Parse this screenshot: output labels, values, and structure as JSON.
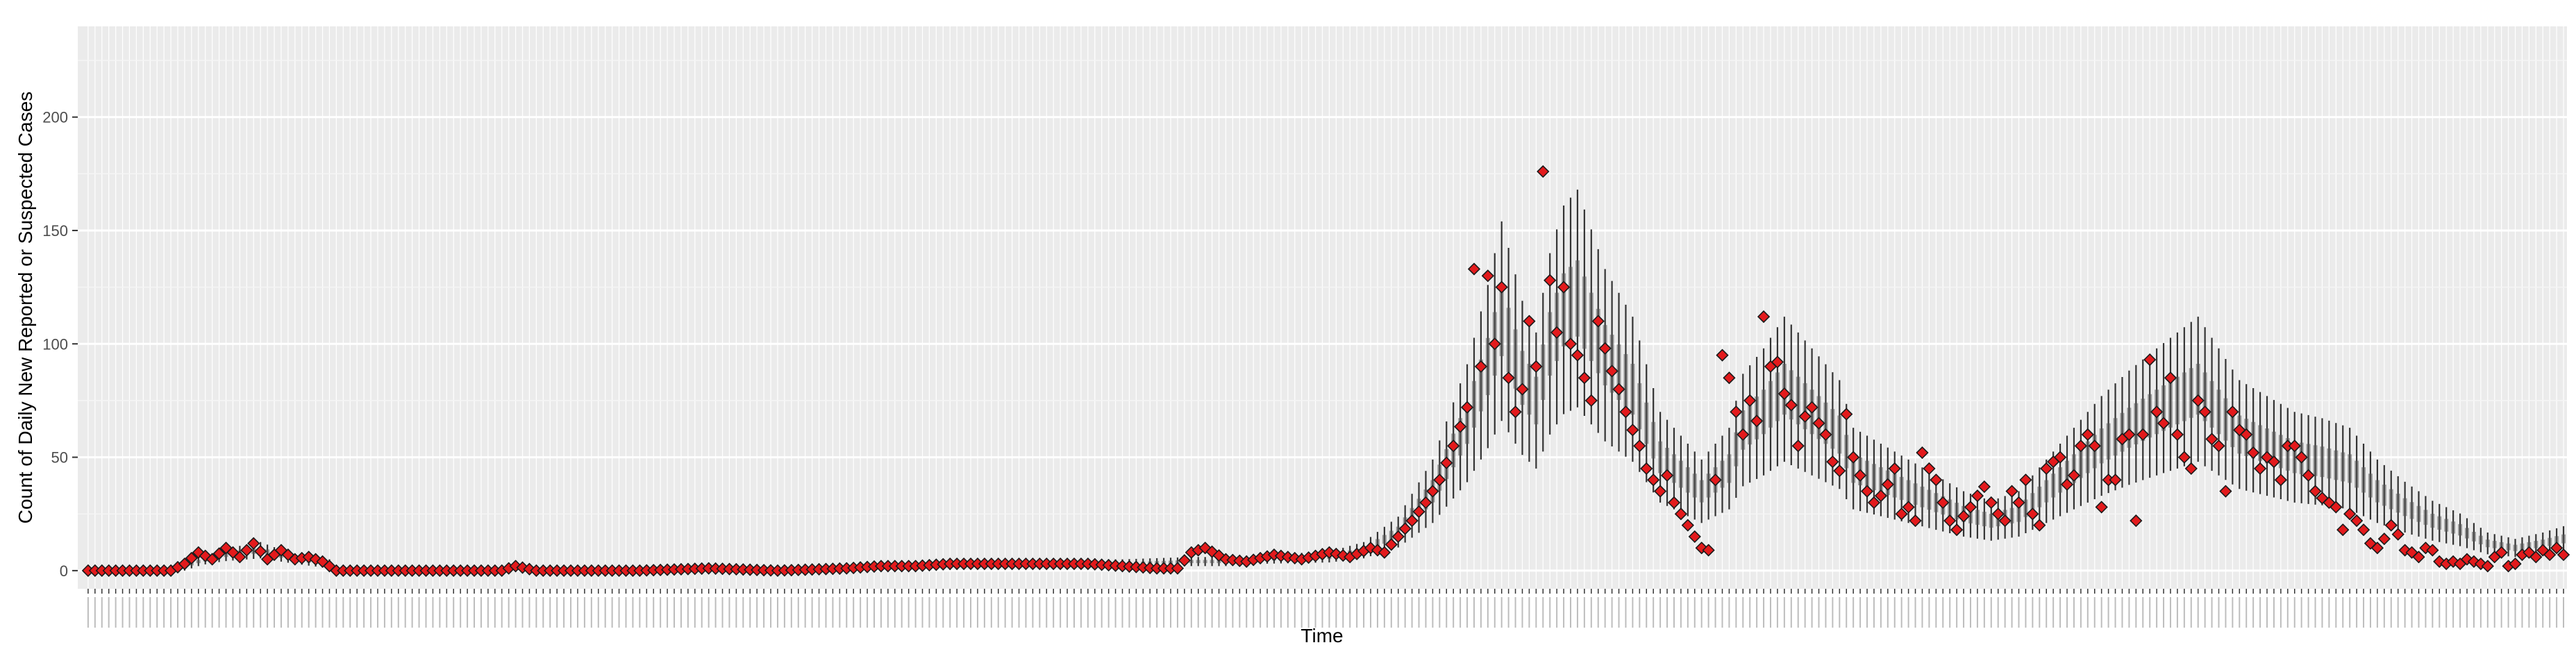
{
  "chart_data": {
    "type": "scatter",
    "title": "",
    "xlabel": "Time",
    "ylabel": "Count of Daily New Reported or Suspected Cases",
    "ylim": [
      -8,
      240
    ],
    "yticks": [
      0,
      50,
      100,
      150,
      200
    ],
    "x_tick_labels_legible": false,
    "grid": true,
    "legend": "none",
    "n_days": 360,
    "colors": {
      "panel": "#ebebeb",
      "grid_major": "#ffffff",
      "observed_fill": "#e31a1c",
      "observed_stroke": "#1a1a1a",
      "interval": "#333333"
    },
    "series": [
      {
        "kind": "interval",
        "description_points": [
          [
            0,
            0
          ],
          [
            12,
            0
          ],
          [
            16,
            4
          ],
          [
            20,
            7
          ],
          [
            25,
            9
          ],
          [
            30,
            5
          ],
          [
            35,
            3
          ],
          [
            36,
            0
          ],
          [
            60,
            0
          ],
          [
            100,
            0
          ],
          [
            110,
            1
          ],
          [
            120,
            2
          ],
          [
            135,
            3
          ],
          [
            145,
            3
          ],
          [
            150,
            3
          ],
          [
            160,
            4
          ],
          [
            165,
            4
          ],
          [
            170,
            5
          ],
          [
            180,
            6
          ],
          [
            185,
            9
          ],
          [
            190,
            17
          ],
          [
            195,
            35
          ],
          [
            200,
            65
          ],
          [
            203,
            90
          ],
          [
            205,
            110
          ],
          [
            208,
            85
          ],
          [
            210,
            75
          ],
          [
            212,
            100
          ],
          [
            214,
            115
          ],
          [
            216,
            120
          ],
          [
            220,
            95
          ],
          [
            224,
            80
          ],
          [
            228,
            50
          ],
          [
            232,
            40
          ],
          [
            234,
            35
          ],
          [
            238,
            45
          ],
          [
            240,
            62
          ],
          [
            243,
            70
          ],
          [
            246,
            80
          ],
          [
            250,
            70
          ],
          [
            254,
            60
          ],
          [
            256,
            45
          ],
          [
            260,
            40
          ],
          [
            264,
            35
          ],
          [
            268,
            30
          ],
          [
            272,
            25
          ],
          [
            276,
            22
          ],
          [
            280,
            25
          ],
          [
            284,
            35
          ],
          [
            288,
            45
          ],
          [
            292,
            55
          ],
          [
            296,
            63
          ],
          [
            300,
            70
          ],
          [
            303,
            75
          ],
          [
            306,
            80
          ],
          [
            309,
            70
          ],
          [
            312,
            60
          ],
          [
            316,
            55
          ],
          [
            320,
            50
          ],
          [
            324,
            48
          ],
          [
            328,
            45
          ],
          [
            332,
            35
          ],
          [
            336,
            28
          ],
          [
            340,
            22
          ],
          [
            344,
            18
          ],
          [
            348,
            12
          ],
          [
            352,
            10
          ],
          [
            356,
            12
          ],
          [
            359,
            14
          ]
        ],
        "band_halfwidth_fraction": 0.4
      },
      {
        "kind": "observed",
        "points": [
          [
            0,
            0
          ],
          [
            6,
            0
          ],
          [
            12,
            0
          ],
          [
            14,
            3
          ],
          [
            16,
            8
          ],
          [
            18,
            5
          ],
          [
            20,
            10
          ],
          [
            22,
            6
          ],
          [
            24,
            12
          ],
          [
            26,
            5
          ],
          [
            28,
            9
          ],
          [
            30,
            5
          ],
          [
            32,
            6
          ],
          [
            34,
            4
          ],
          [
            36,
            0
          ],
          [
            50,
            0
          ],
          [
            60,
            0
          ],
          [
            62,
            2
          ],
          [
            65,
            0
          ],
          [
            75,
            0
          ],
          [
            80,
            0
          ],
          [
            90,
            1
          ],
          [
            100,
            0
          ],
          [
            110,
            1
          ],
          [
            115,
            2
          ],
          [
            120,
            2
          ],
          [
            125,
            3
          ],
          [
            130,
            3
          ],
          [
            135,
            3
          ],
          [
            140,
            3
          ],
          [
            145,
            3
          ],
          [
            150,
            2
          ],
          [
            155,
            1
          ],
          [
            158,
            1
          ],
          [
            160,
            8
          ],
          [
            162,
            10
          ],
          [
            165,
            5
          ],
          [
            168,
            4
          ],
          [
            172,
            7
          ],
          [
            176,
            5
          ],
          [
            180,
            8
          ],
          [
            183,
            6
          ],
          [
            186,
            10
          ],
          [
            188,
            8
          ],
          [
            190,
            15
          ],
          [
            192,
            22
          ],
          [
            194,
            30
          ],
          [
            196,
            40
          ],
          [
            198,
            55
          ],
          [
            200,
            72
          ],
          [
            201,
            133
          ],
          [
            202,
            90
          ],
          [
            203,
            130
          ],
          [
            204,
            100
          ],
          [
            205,
            125
          ],
          [
            206,
            85
          ],
          [
            207,
            70
          ],
          [
            208,
            80
          ],
          [
            209,
            110
          ],
          [
            210,
            90
          ],
          [
            211,
            176
          ],
          [
            212,
            128
          ],
          [
            213,
            105
          ],
          [
            214,
            125
          ],
          [
            215,
            100
          ],
          [
            216,
            95
          ],
          [
            217,
            85
          ],
          [
            218,
            75
          ],
          [
            219,
            110
          ],
          [
            220,
            98
          ],
          [
            221,
            88
          ],
          [
            222,
            80
          ],
          [
            223,
            70
          ],
          [
            224,
            62
          ],
          [
            225,
            55
          ],
          [
            226,
            45
          ],
          [
            227,
            40
          ],
          [
            228,
            35
          ],
          [
            229,
            42
          ],
          [
            230,
            30
          ],
          [
            231,
            25
          ],
          [
            232,
            20
          ],
          [
            233,
            15
          ],
          [
            234,
            10
          ],
          [
            235,
            9
          ],
          [
            236,
            40
          ],
          [
            237,
            95
          ],
          [
            238,
            85
          ],
          [
            239,
            70
          ],
          [
            240,
            60
          ],
          [
            241,
            75
          ],
          [
            242,
            66
          ],
          [
            243,
            112
          ],
          [
            244,
            90
          ],
          [
            245,
            92
          ],
          [
            246,
            78
          ],
          [
            247,
            73
          ],
          [
            248,
            55
          ],
          [
            249,
            68
          ],
          [
            250,
            72
          ],
          [
            251,
            65
          ],
          [
            252,
            60
          ],
          [
            253,
            48
          ],
          [
            254,
            44
          ],
          [
            255,
            69
          ],
          [
            256,
            50
          ],
          [
            257,
            42
          ],
          [
            258,
            35
          ],
          [
            259,
            30
          ],
          [
            260,
            33
          ],
          [
            261,
            38
          ],
          [
            262,
            45
          ],
          [
            263,
            25
          ],
          [
            264,
            28
          ],
          [
            265,
            22
          ],
          [
            266,
            52
          ],
          [
            267,
            45
          ],
          [
            268,
            40
          ],
          [
            269,
            30
          ],
          [
            270,
            22
          ],
          [
            271,
            18
          ],
          [
            272,
            24
          ],
          [
            273,
            28
          ],
          [
            274,
            33
          ],
          [
            275,
            37
          ],
          [
            276,
            30
          ],
          [
            277,
            25
          ],
          [
            278,
            22
          ],
          [
            279,
            35
          ],
          [
            280,
            30
          ],
          [
            281,
            40
          ],
          [
            282,
            25
          ],
          [
            283,
            20
          ],
          [
            284,
            45
          ],
          [
            285,
            48
          ],
          [
            286,
            50
          ],
          [
            287,
            38
          ],
          [
            288,
            42
          ],
          [
            289,
            55
          ],
          [
            290,
            60
          ],
          [
            291,
            55
          ],
          [
            292,
            28
          ],
          [
            293,
            40
          ],
          [
            294,
            40
          ],
          [
            295,
            58
          ],
          [
            296,
            60
          ],
          [
            297,
            22
          ],
          [
            298,
            60
          ],
          [
            299,
            93
          ],
          [
            300,
            70
          ],
          [
            301,
            65
          ],
          [
            302,
            85
          ],
          [
            303,
            60
          ],
          [
            304,
            50
          ],
          [
            305,
            45
          ],
          [
            306,
            75
          ],
          [
            307,
            70
          ],
          [
            308,
            58
          ],
          [
            309,
            55
          ],
          [
            310,
            35
          ],
          [
            311,
            70
          ],
          [
            312,
            62
          ],
          [
            313,
            60
          ],
          [
            314,
            52
          ],
          [
            315,
            45
          ],
          [
            316,
            50
          ],
          [
            317,
            48
          ],
          [
            318,
            40
          ],
          [
            319,
            55
          ],
          [
            320,
            55
          ],
          [
            321,
            50
          ],
          [
            322,
            42
          ],
          [
            323,
            35
          ],
          [
            324,
            32
          ],
          [
            325,
            30
          ],
          [
            326,
            28
          ],
          [
            327,
            18
          ],
          [
            328,
            25
          ],
          [
            329,
            22
          ],
          [
            330,
            18
          ],
          [
            331,
            12
          ],
          [
            332,
            10
          ],
          [
            333,
            14
          ],
          [
            334,
            20
          ],
          [
            335,
            16
          ],
          [
            336,
            9
          ],
          [
            337,
            8
          ],
          [
            338,
            6
          ],
          [
            339,
            10
          ],
          [
            340,
            9
          ],
          [
            341,
            4
          ],
          [
            342,
            3
          ],
          [
            343,
            4
          ],
          [
            344,
            3
          ],
          [
            345,
            5
          ],
          [
            346,
            4
          ],
          [
            347,
            3
          ],
          [
            348,
            2
          ],
          [
            349,
            6
          ],
          [
            350,
            8
          ],
          [
            351,
            2
          ],
          [
            352,
            3
          ],
          [
            353,
            7
          ],
          [
            354,
            8
          ],
          [
            355,
            6
          ],
          [
            356,
            9
          ],
          [
            357,
            7
          ],
          [
            358,
            10
          ],
          [
            359,
            7
          ]
        ]
      }
    ]
  }
}
